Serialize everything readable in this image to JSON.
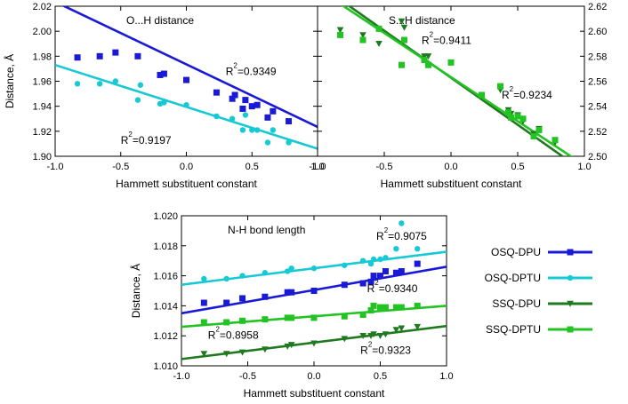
{
  "chart_data": [
    {
      "id": "oh",
      "type": "scatter",
      "title": "O...H distance",
      "xlabel": "Hammett substituent constant",
      "ylabel": "Distance, Å",
      "xlim": [
        -1.0,
        1.0
      ],
      "ylim": [
        1.9,
        2.02
      ],
      "xticks": [
        "-1.0",
        "-0.5",
        "0.0",
        "0.5",
        "1.0"
      ],
      "yticks": [
        "1.90",
        "1.92",
        "1.94",
        "1.96",
        "1.98",
        "2.00",
        "2.02"
      ],
      "y_axis_side": "left",
      "series": [
        {
          "name": "OSQ-DPU",
          "color": "#1a1ad6",
          "marker": "square",
          "x": [
            -0.83,
            -0.66,
            -0.54,
            -0.37,
            -0.2,
            -0.17,
            0.0,
            0.23,
            0.35,
            0.37,
            0.43,
            0.45,
            0.5,
            0.54,
            0.62,
            0.66,
            0.78
          ],
          "y": [
            1.979,
            1.98,
            1.983,
            1.98,
            1.965,
            1.966,
            1.961,
            1.951,
            1.946,
            1.949,
            1.938,
            1.945,
            1.94,
            1.941,
            1.931,
            1.936,
            1.928
          ],
          "fit": [
            1.9735,
            -0.05
          ]
        },
        {
          "name": "OSQ-DPTU",
          "color": "#17c9d4",
          "marker": "circle",
          "x": [
            -0.83,
            -0.66,
            -0.54,
            -0.37,
            -0.35,
            -0.2,
            -0.17,
            0.0,
            0.23,
            0.35,
            0.43,
            0.45,
            0.5,
            0.54,
            0.62,
            0.66,
            0.78
          ],
          "y": [
            1.958,
            1.958,
            1.96,
            1.945,
            1.957,
            1.942,
            1.943,
            1.941,
            1.932,
            1.93,
            1.921,
            1.933,
            1.921,
            1.921,
            1.911,
            1.921,
            1.911
          ],
          "fit": [
            1.9395,
            -0.0335
          ]
        }
      ],
      "annotations": [
        {
          "text": "R²=0.9349",
          "color": "#1a1ad6",
          "x": 0.3,
          "y": 1.965
        },
        {
          "text": "R²=0.9197",
          "color": "#17c9d4",
          "x": -0.5,
          "y": 1.91
        }
      ]
    },
    {
      "id": "sh",
      "type": "scatter",
      "title": "S...H distance",
      "xlabel": "Hammett substituent constant",
      "ylabel": "",
      "xlim": [
        -1.0,
        1.0
      ],
      "ylim": [
        2.5,
        2.62
      ],
      "xticks": [
        "-1.0",
        "-0.5",
        "0.0",
        "0.5",
        "1.0"
      ],
      "yticks": [
        "2.50",
        "2.52",
        "2.54",
        "2.56",
        "2.58",
        "2.60",
        "2.62"
      ],
      "y_axis_side": "right",
      "series": [
        {
          "name": "SSQ-DPU",
          "color": "#1f7a1f",
          "marker": "triangle-down",
          "x": [
            -0.83,
            -0.66,
            -0.54,
            -0.37,
            -0.35,
            -0.2,
            -0.17,
            0.0,
            0.23,
            0.37,
            0.43,
            0.45,
            0.5,
            0.54,
            0.62,
            0.66,
            0.78
          ],
          "y": [
            2.601,
            2.597,
            2.59,
            2.608,
            2.603,
            2.58,
            2.58,
            2.575,
            2.549,
            2.553,
            2.537,
            2.534,
            2.533,
            2.528,
            2.518,
            2.522,
            2.511
          ],
          "fit": [
            2.5628,
            -0.0752
          ]
        },
        {
          "name": "SSQ-DPTU",
          "color": "#22c322",
          "marker": "square",
          "x": [
            -0.83,
            -0.66,
            -0.54,
            -0.37,
            -0.35,
            -0.2,
            -0.17,
            0.0,
            0.23,
            0.37,
            0.43,
            0.45,
            0.5,
            0.54,
            0.62,
            0.66,
            0.78
          ],
          "y": [
            2.597,
            2.593,
            2.602,
            2.573,
            2.593,
            2.577,
            2.573,
            2.575,
            2.549,
            2.556,
            2.535,
            2.531,
            2.532,
            2.53,
            2.516,
            2.521,
            2.513
          ],
          "fit": [
            2.5633,
            -0.0705
          ]
        }
      ],
      "annotations": [
        {
          "text": "R²=0.9411",
          "color": "#22c322",
          "x": -0.22,
          "y": 2.59
        },
        {
          "text": "R²=0.9234",
          "color": "#22c322",
          "x": 0.38,
          "y": 2.546
        }
      ]
    },
    {
      "id": "nh",
      "type": "scatter",
      "title": "N-H bond length",
      "xlabel": "Hammett substituent constant",
      "ylabel": "Distance, Å",
      "xlim": [
        -1.0,
        1.0
      ],
      "ylim": [
        1.01,
        1.02
      ],
      "xticks": [
        "-1.0",
        "-0.5",
        "0.0",
        "0.5",
        "1.0"
      ],
      "yticks": [
        "1.010",
        "1.012",
        "1.014",
        "1.016",
        "1.018",
        "1.020"
      ],
      "y_axis_side": "left",
      "series": [
        {
          "name": "OSQ-DPU",
          "color": "#1a1ad6",
          "marker": "square",
          "x": [
            -0.83,
            -0.66,
            -0.54,
            -0.37,
            -0.2,
            -0.17,
            0.0,
            0.23,
            0.37,
            0.43,
            0.45,
            0.5,
            0.54,
            0.62,
            0.66,
            0.78
          ],
          "y": [
            1.0142,
            1.0142,
            1.0145,
            1.0146,
            1.0149,
            1.0149,
            1.015,
            1.0154,
            1.0155,
            1.0156,
            1.016,
            1.016,
            1.0163,
            1.0162,
            1.0163,
            1.0168
          ],
          "fit": [
            1.01505,
            0.00155
          ]
        },
        {
          "name": "OSQ-DPTU",
          "color": "#17c9d4",
          "marker": "circle",
          "x": [
            -0.83,
            -0.66,
            -0.54,
            -0.37,
            -0.2,
            -0.17,
            0.0,
            0.23,
            0.37,
            0.43,
            0.45,
            0.5,
            0.54,
            0.62,
            0.66,
            0.78
          ],
          "y": [
            1.0158,
            1.0158,
            1.016,
            1.0162,
            1.0163,
            1.0165,
            1.0165,
            1.0167,
            1.017,
            1.0168,
            1.0171,
            1.0171,
            1.0172,
            1.0178,
            1.0195,
            1.0178
          ],
          "fit": [
            1.0165,
            0.0011
          ]
        },
        {
          "name": "SSQ-DPU",
          "color": "#1f7a1f",
          "marker": "triangle-down",
          "x": [
            -0.83,
            -0.66,
            -0.54,
            -0.37,
            -0.2,
            -0.17,
            0.0,
            0.23,
            0.37,
            0.43,
            0.45,
            0.5,
            0.54,
            0.62,
            0.66,
            0.78
          ],
          "y": [
            1.0108,
            1.0108,
            1.0109,
            1.0111,
            1.0113,
            1.0114,
            1.0115,
            1.0118,
            1.012,
            1.012,
            1.0121,
            1.012,
            1.0121,
            1.0124,
            1.0125,
            1.0126
          ],
          "fit": [
            1.01155,
            0.0011
          ]
        },
        {
          "name": "SSQ-DPTU",
          "color": "#22c322",
          "marker": "square",
          "x": [
            -0.83,
            -0.66,
            -0.54,
            -0.37,
            -0.2,
            -0.17,
            0.0,
            0.23,
            0.37,
            0.43,
            0.45,
            0.5,
            0.54,
            0.62,
            0.66,
            0.78
          ],
          "y": [
            1.0129,
            1.0129,
            1.013,
            1.0131,
            1.0132,
            1.0132,
            1.0132,
            1.0133,
            1.0134,
            1.0137,
            1.014,
            1.0139,
            1.0139,
            1.0139,
            1.0139,
            1.014
          ],
          "fit": [
            1.0133,
            0.0007
          ]
        }
      ],
      "annotations": [
        {
          "text": "R²=0.9075",
          "color": "#17c9d4",
          "x": 0.47,
          "y": 1.0184
        },
        {
          "text": "R²=0.9340",
          "color": "#1a1ad6",
          "x": 0.4,
          "y": 1.0149
        },
        {
          "text": "R²=0.8958",
          "color": "#22c322",
          "x": -0.8,
          "y": 1.0118
        },
        {
          "text": "R²=0.9323",
          "color": "#22c322",
          "x": 0.35,
          "y": 1.0108
        }
      ]
    }
  ],
  "legend": {
    "placement": "right",
    "entries": [
      {
        "label": "OSQ-DPU",
        "color": "#1a1ad6",
        "marker": "square"
      },
      {
        "label": "OSQ-DPTU",
        "color": "#17c9d4",
        "marker": "circle"
      },
      {
        "label": "SSQ-DPU",
        "color": "#1f7a1f",
        "marker": "triangle-down"
      },
      {
        "label": "SSQ-DPTU",
        "color": "#22c322",
        "marker": "square"
      }
    ]
  }
}
